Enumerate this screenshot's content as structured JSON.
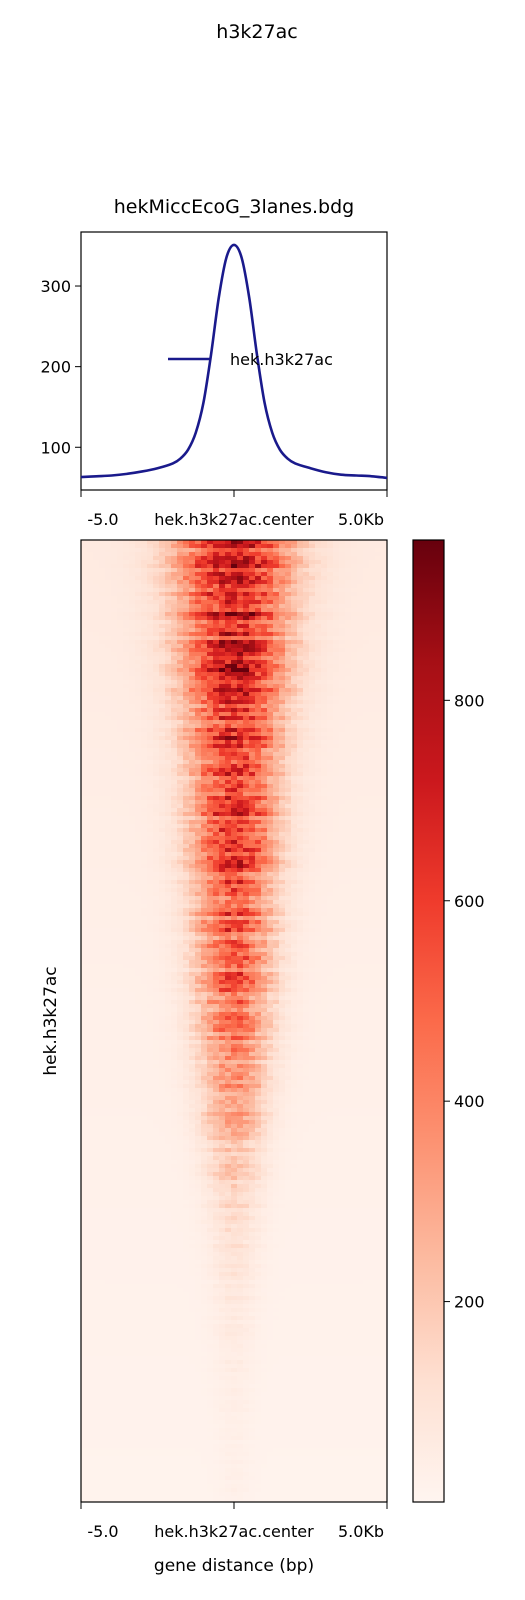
{
  "figure": {
    "title": "h3k27ac"
  },
  "chart_data": [
    {
      "type": "line",
      "title": "hekMiccEcoG_3lanes.bdg",
      "x_ticks": [
        "-5.0",
        "hek.h3k27ac.center",
        "5.0Kb"
      ],
      "x_range": [
        -5000,
        5000
      ],
      "ylim": [
        47,
        367
      ],
      "y_ticks": [
        100,
        200,
        300
      ],
      "legend_position": "center-right",
      "series": [
        {
          "name": "hek.h3k27ac",
          "color": "#1a1a8c",
          "x": [
            -5000,
            -4500,
            -4000,
            -3500,
            -3000,
            -2500,
            -2000,
            -1750,
            -1500,
            -1250,
            -1000,
            -750,
            -500,
            -250,
            0,
            250,
            500,
            750,
            1000,
            1250,
            1500,
            1750,
            2000,
            2500,
            3000,
            3500,
            4000,
            4500,
            5000
          ],
          "values": [
            63,
            64,
            65,
            67,
            70,
            74,
            80,
            86,
            97,
            118,
            155,
            215,
            285,
            335,
            351,
            335,
            285,
            215,
            155,
            118,
            97,
            86,
            80,
            74,
            69,
            66,
            65,
            64,
            62
          ]
        }
      ]
    },
    {
      "type": "heatmap",
      "ylabel": "hek.h3k27ac",
      "xlabel": "gene distance (bp)",
      "x_ticks": [
        "-5.0",
        "hek.h3k27ac.center",
        "5.0Kb"
      ],
      "colormap": "Reds",
      "color_range": [
        0,
        960
      ],
      "colorbar_ticks": [
        200,
        400,
        600,
        800
      ],
      "center_values_top_to_bottom": [
        700,
        720,
        680,
        640,
        600,
        540,
        470,
        380,
        250,
        140,
        80,
        50,
        35,
        25
      ],
      "profile_half_width_kb_top_to_bottom": [
        1.3,
        1.2,
        1.1,
        1.0,
        0.95,
        0.9,
        0.85,
        0.8,
        0.7,
        0.6,
        0.5,
        0.45,
        0.4,
        0.35
      ],
      "flank_values_top_to_bottom": [
        60,
        55,
        50,
        45,
        40,
        35,
        30,
        28,
        25,
        22,
        20,
        18,
        15,
        12
      ]
    }
  ]
}
